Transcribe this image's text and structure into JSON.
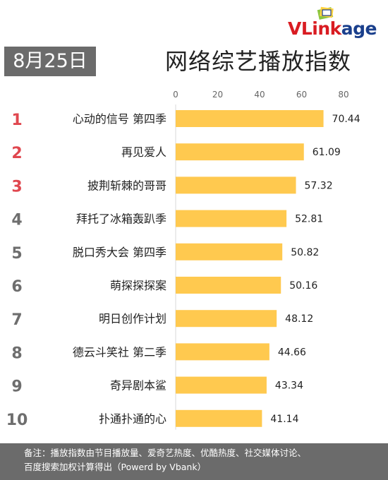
{
  "date_label": "8月25日",
  "logo": {
    "text_v": "VLink",
    "text_k": "age"
  },
  "colors": {
    "bar": "#ffc94f",
    "rank_top": "#e0474f",
    "rank_other": "#6e6e6e",
    "badge": "#6b6b6b"
  },
  "chart_data": {
    "type": "bar",
    "orientation": "horizontal",
    "title": "网络综艺播放指数",
    "ranks": [
      "1",
      "2",
      "3",
      "4",
      "5",
      "6",
      "7",
      "8",
      "9",
      "10"
    ],
    "categories": [
      "心动的信号 第四季",
      "再见爱人",
      "披荆斩棘的哥哥",
      "拜托了冰箱轰趴季",
      "脱口秀大会 第四季",
      "萌探探探案",
      "明日创作计划",
      "德云斗笑社 第二季",
      "奇异剧本鲨",
      "扑通扑通的心"
    ],
    "values": [
      70.44,
      61.09,
      57.32,
      52.81,
      50.82,
      50.16,
      48.12,
      44.66,
      43.34,
      41.14
    ],
    "value_labels": [
      "70.44",
      "61.09",
      "57.32",
      "52.81",
      "50.82",
      "50.16",
      "48.12",
      "44.66",
      "43.34",
      "41.14"
    ],
    "xlim": [
      0,
      80
    ],
    "xticks": [
      "0",
      "20",
      "40",
      "60",
      "80"
    ],
    "grid": false,
    "axis_position": "top"
  },
  "footer": {
    "line1": "备注：播放指数由节目播放量、爱奇艺热度、优酷热度、社交媒体讨论、",
    "line2": "百度搜索加权计算得出（Powerd by Vbank）"
  }
}
